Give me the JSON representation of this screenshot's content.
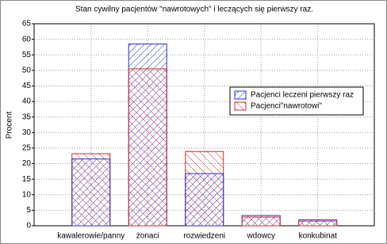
{
  "chart_data": {
    "type": "bar",
    "overlap": true,
    "title": "Stan cywilny pacjentów \"nawrotowych\" i leczących się pierwszy raz.",
    "y_label": "Procent",
    "categories": [
      "kawalerowie/panny",
      "żonaci",
      "rozwiedzeni",
      "wdowcy",
      "konkubinat"
    ],
    "series": [
      {
        "name": "Pacjenci leczeni pierwszy raz",
        "color": "#2b2bd0",
        "values": [
          21.5,
          58.5,
          16.8,
          3.3,
          1.9
        ]
      },
      {
        "name": "Pacjenci\"nawrotowi\"",
        "color": "#d02b2b",
        "values": [
          23.2,
          50.5,
          23.9,
          2.8,
          1.5
        ]
      }
    ],
    "ylim": [
      0,
      65
    ],
    "yticks": [
      0,
      5,
      10,
      15,
      20,
      25,
      30,
      35,
      40,
      45,
      50,
      55,
      60,
      65
    ],
    "grid": true
  }
}
